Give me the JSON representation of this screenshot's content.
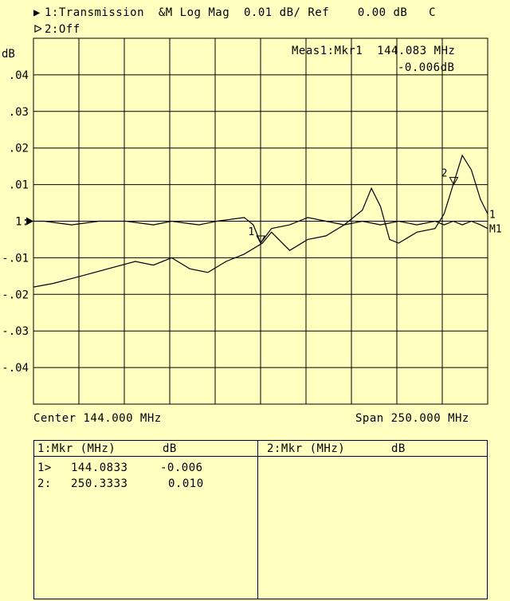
{
  "header": {
    "ch1_marker": "▶",
    "ch1_label": "1:Transmission  &M Log Mag  0.01 dB/ Ref    0.00 dB   C",
    "ch2_marker": "ᐅ",
    "ch2_label": "2:Off"
  },
  "measure": {
    "line1": "Meas1:Mkr1  144.083 MHz",
    "line2": "-0.006dB"
  },
  "footer": {
    "center": "Center 144.000 MHz",
    "span": "Span 250.000 MHz"
  },
  "marker_table": {
    "ch1_header": {
      "title": "1:Mkr (MHz)",
      "unit": "dB"
    },
    "ch2_header": {
      "title": "2:Mkr (MHz)",
      "unit": "dB"
    },
    "rows": [
      {
        "id": "1>",
        "freq": "144.0833",
        "value": "-0.006"
      },
      {
        "id": "2:",
        "freq": "250.3333",
        "value": "0.010"
      }
    ]
  },
  "chart_data": {
    "type": "line",
    "ylabel": "dB",
    "x_range_mhz": [
      19,
      269
    ],
    "ylim": [
      -0.05,
      0.05
    ],
    "y_ticks": [
      {
        "value": 0.04,
        "label": ".04"
      },
      {
        "value": 0.03,
        "label": ".03"
      },
      {
        "value": 0.02,
        "label": ".02"
      },
      {
        "value": 0.01,
        "label": ".01"
      },
      {
        "value": 0.0,
        "label": "1:"
      },
      {
        "value": -0.01,
        "label": "-.01"
      },
      {
        "value": -0.02,
        "label": "-.02"
      },
      {
        "value": -0.03,
        "label": "-.03"
      },
      {
        "value": -0.04,
        "label": "-.04"
      }
    ],
    "grid": true,
    "reference_level": 0.0,
    "series": [
      {
        "name": "",
        "x": [
          19,
          25,
          40,
          55,
          70,
          85,
          95,
          110,
          120,
          135,
          140,
          144,
          150,
          160,
          170,
          180,
          190,
          200,
          210,
          220,
          230,
          240,
          245,
          250,
          255,
          260,
          265,
          269
        ],
        "y": [
          0.0,
          0.0,
          -0.001,
          0.0,
          0.0,
          -0.001,
          0.0,
          -0.001,
          0.0,
          0.001,
          -0.001,
          -0.006,
          -0.002,
          -0.001,
          0.001,
          0.0,
          -0.001,
          0.0,
          -0.001,
          0.0,
          -0.001,
          0.0,
          -0.001,
          0.0,
          -0.001,
          0.0,
          -0.001,
          -0.002
        ]
      },
      {
        "name": "",
        "x": [
          19,
          30,
          45,
          60,
          75,
          85,
          95,
          105,
          115,
          125,
          135,
          145,
          150,
          160,
          170,
          180,
          190,
          200,
          205,
          210,
          215,
          220,
          230,
          240,
          245,
          250,
          255,
          260,
          265,
          269
        ],
        "y": [
          -0.018,
          -0.017,
          -0.015,
          -0.013,
          -0.011,
          -0.012,
          -0.01,
          -0.013,
          -0.014,
          -0.011,
          -0.009,
          -0.006,
          -0.003,
          -0.008,
          -0.005,
          -0.004,
          -0.001,
          0.003,
          0.009,
          0.004,
          -0.005,
          -0.006,
          -0.003,
          -0.002,
          0.002,
          0.01,
          0.018,
          0.014,
          0.006,
          0.002
        ]
      }
    ],
    "markers": [
      {
        "id": "1",
        "x_mhz": 144.0833,
        "value_db": -0.006,
        "label": "1"
      },
      {
        "id": "2",
        "x_mhz": 250.3333,
        "value_db": 0.01,
        "label": "2"
      }
    ],
    "trace_end_labels": [
      "1",
      "M1"
    ]
  }
}
